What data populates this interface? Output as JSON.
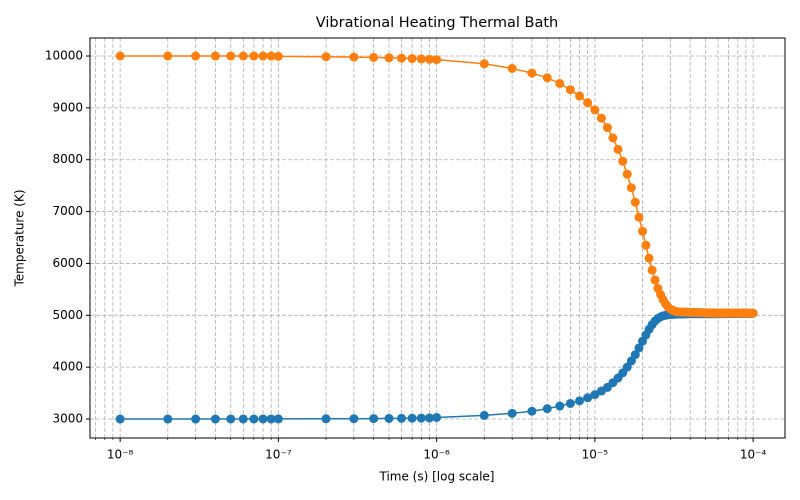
{
  "chart_data": {
    "type": "line",
    "title": "Vibrational Heating Thermal Bath",
    "xlabel": "Time (s) [log scale]",
    "ylabel": "Temperature (K)",
    "xscale": "log",
    "grid": true,
    "xlim": [
      6.45e-09,
      0.000159
    ],
    "ylim": [
      2634,
      10347
    ],
    "xticks": [
      {
        "value": 1e-08,
        "label": "10⁻⁸"
      },
      {
        "value": 1e-07,
        "label": "10⁻⁷"
      },
      {
        "value": 1e-06,
        "label": "10⁻⁶"
      },
      {
        "value": 1e-05,
        "label": "10⁻⁵"
      },
      {
        "value": 0.0001,
        "label": "10⁻⁴"
      }
    ],
    "xminorticks": [
      7e-09,
      8e-09,
      9e-09,
      2e-08,
      3e-08,
      4e-08,
      5e-08,
      6e-08,
      7e-08,
      8e-08,
      9e-08,
      2e-07,
      3e-07,
      4e-07,
      5e-07,
      6e-07,
      7e-07,
      8e-07,
      9e-07,
      2e-06,
      3e-06,
      4e-06,
      5e-06,
      6e-06,
      7e-06,
      8e-06,
      9e-06,
      2e-05,
      3e-05,
      4e-05,
      5e-05,
      6e-05,
      7e-05,
      8e-05,
      9e-05
    ],
    "yticks": [
      3000,
      4000,
      5000,
      6000,
      7000,
      8000,
      9000,
      10000
    ],
    "x": [
      1e-08,
      2e-08,
      3e-08,
      4e-08,
      5e-08,
      6e-08,
      7e-08,
      8e-08,
      9e-08,
      1e-07,
      2e-07,
      3e-07,
      4e-07,
      5e-07,
      6e-07,
      7e-07,
      8e-07,
      9e-07,
      1e-06,
      2e-06,
      3e-06,
      4e-06,
      5e-06,
      6e-06,
      7e-06,
      8e-06,
      9e-06,
      1e-05,
      1.1e-05,
      1.2e-05,
      1.3e-05,
      1.4e-05,
      1.5e-05,
      1.6e-05,
      1.7e-05,
      1.8e-05,
      1.9e-05,
      2e-05,
      2.1e-05,
      2.2e-05,
      2.3e-05,
      2.4e-05,
      2.5e-05,
      2.6e-05,
      2.7e-05,
      2.8e-05,
      2.9e-05,
      3e-05,
      3.1e-05,
      3.2e-05,
      3.3e-05,
      3.4e-05,
      3.5e-05,
      3.6e-05,
      3.7e-05,
      3.8e-05,
      3.9e-05,
      4e-05,
      4.1e-05,
      4.2e-05,
      4.3e-05,
      4.4e-05,
      4.5e-05,
      4.6e-05,
      4.7e-05,
      4.8e-05,
      4.9e-05,
      5e-05,
      5.1e-05,
      5.2e-05,
      5.3e-05,
      5.4e-05,
      5.5e-05,
      5.6e-05,
      5.7e-05,
      5.8e-05,
      5.9e-05,
      6e-05,
      6.1e-05,
      6.2e-05,
      6.3e-05,
      6.4e-05,
      6.5e-05,
      6.6e-05,
      6.7e-05,
      6.8e-05,
      6.9e-05,
      7e-05,
      7.1e-05,
      7.2e-05,
      7.3e-05,
      7.4e-05,
      7.5e-05,
      7.6e-05,
      7.7e-05,
      7.8e-05,
      7.9e-05,
      8e-05,
      8.1e-05,
      8.2e-05,
      8.3e-05,
      8.4e-05,
      8.5e-05,
      8.6e-05,
      8.7e-05,
      8.8e-05,
      8.9e-05,
      9e-05,
      9.1e-05,
      9.2e-05,
      9.3e-05,
      9.4e-05,
      9.5e-05,
      9.6e-05,
      9.7e-05,
      9.8e-05,
      9.9e-05,
      0.0001
    ],
    "series": [
      {
        "color": "#1f77b4",
        "values": [
          3000,
          3000,
          3000,
          3000,
          3001,
          3001,
          3001,
          3001,
          3001,
          3002,
          3004,
          3006,
          3008,
          3011,
          3013,
          3015,
          3018,
          3020,
          3030,
          3070,
          3110,
          3150,
          3200,
          3250,
          3300,
          3350,
          3410,
          3470,
          3540,
          3610,
          3700,
          3790,
          3890,
          4000,
          4120,
          4240,
          4370,
          4500,
          4620,
          4730,
          4820,
          4890,
          4940,
          4970,
          4990,
          5000,
          5010,
          5015,
          5018,
          5020,
          5022,
          5024,
          5025,
          5026,
          5027,
          5028,
          5029,
          5030,
          5030,
          5030,
          5030,
          5030,
          5030,
          5030,
          5030,
          5030,
          5030,
          5030,
          5031,
          5031,
          5031,
          5031,
          5031,
          5031,
          5031,
          5031,
          5031,
          5031,
          5032,
          5032,
          5032,
          5032,
          5032,
          5032,
          5032,
          5032,
          5032,
          5032,
          5034,
          5034,
          5034,
          5034,
          5034,
          5034,
          5034,
          5034,
          5034,
          5034,
          5036,
          5036,
          5036,
          5036,
          5036,
          5036,
          5036,
          5036,
          5036,
          5036,
          5038,
          5038,
          5038,
          5038,
          5038,
          5038,
          5038,
          5038,
          5038,
          5040
        ]
      },
      {
        "color": "#ff7f0e",
        "values": [
          10000,
          10000,
          9999,
          9999,
          9999,
          9999,
          9999,
          9999,
          9999,
          9993,
          9986,
          9979,
          9972,
          9965,
          9958,
          9951,
          9944,
          9937,
          9930,
          9850,
          9760,
          9670,
          9580,
          9470,
          9350,
          9230,
          9100,
          8960,
          8800,
          8620,
          8420,
          8200,
          7970,
          7720,
          7460,
          7180,
          6890,
          6620,
          6350,
          6100,
          5870,
          5680,
          5520,
          5400,
          5300,
          5220,
          5160,
          5120,
          5095,
          5080,
          5072,
          5067,
          5064,
          5062,
          5061,
          5060,
          5059,
          5058,
          5057,
          5056,
          5055,
          5054,
          5053,
          5052,
          5051,
          5050,
          5049,
          5048,
          5047,
          5047,
          5046,
          5046,
          5045,
          5045,
          5044,
          5044,
          5043,
          5043,
          5042,
          5042,
          5042,
          5042,
          5042,
          5042,
          5042,
          5042,
          5042,
          5042,
          5042,
          5042,
          5042,
          5042,
          5042,
          5042,
          5042,
          5042,
          5042,
          5042,
          5041,
          5041,
          5041,
          5041,
          5041,
          5041,
          5041,
          5041,
          5041,
          5041,
          5040,
          5040,
          5040,
          5040,
          5040,
          5040,
          5040,
          5040,
          5040,
          5040
        ]
      }
    ]
  }
}
